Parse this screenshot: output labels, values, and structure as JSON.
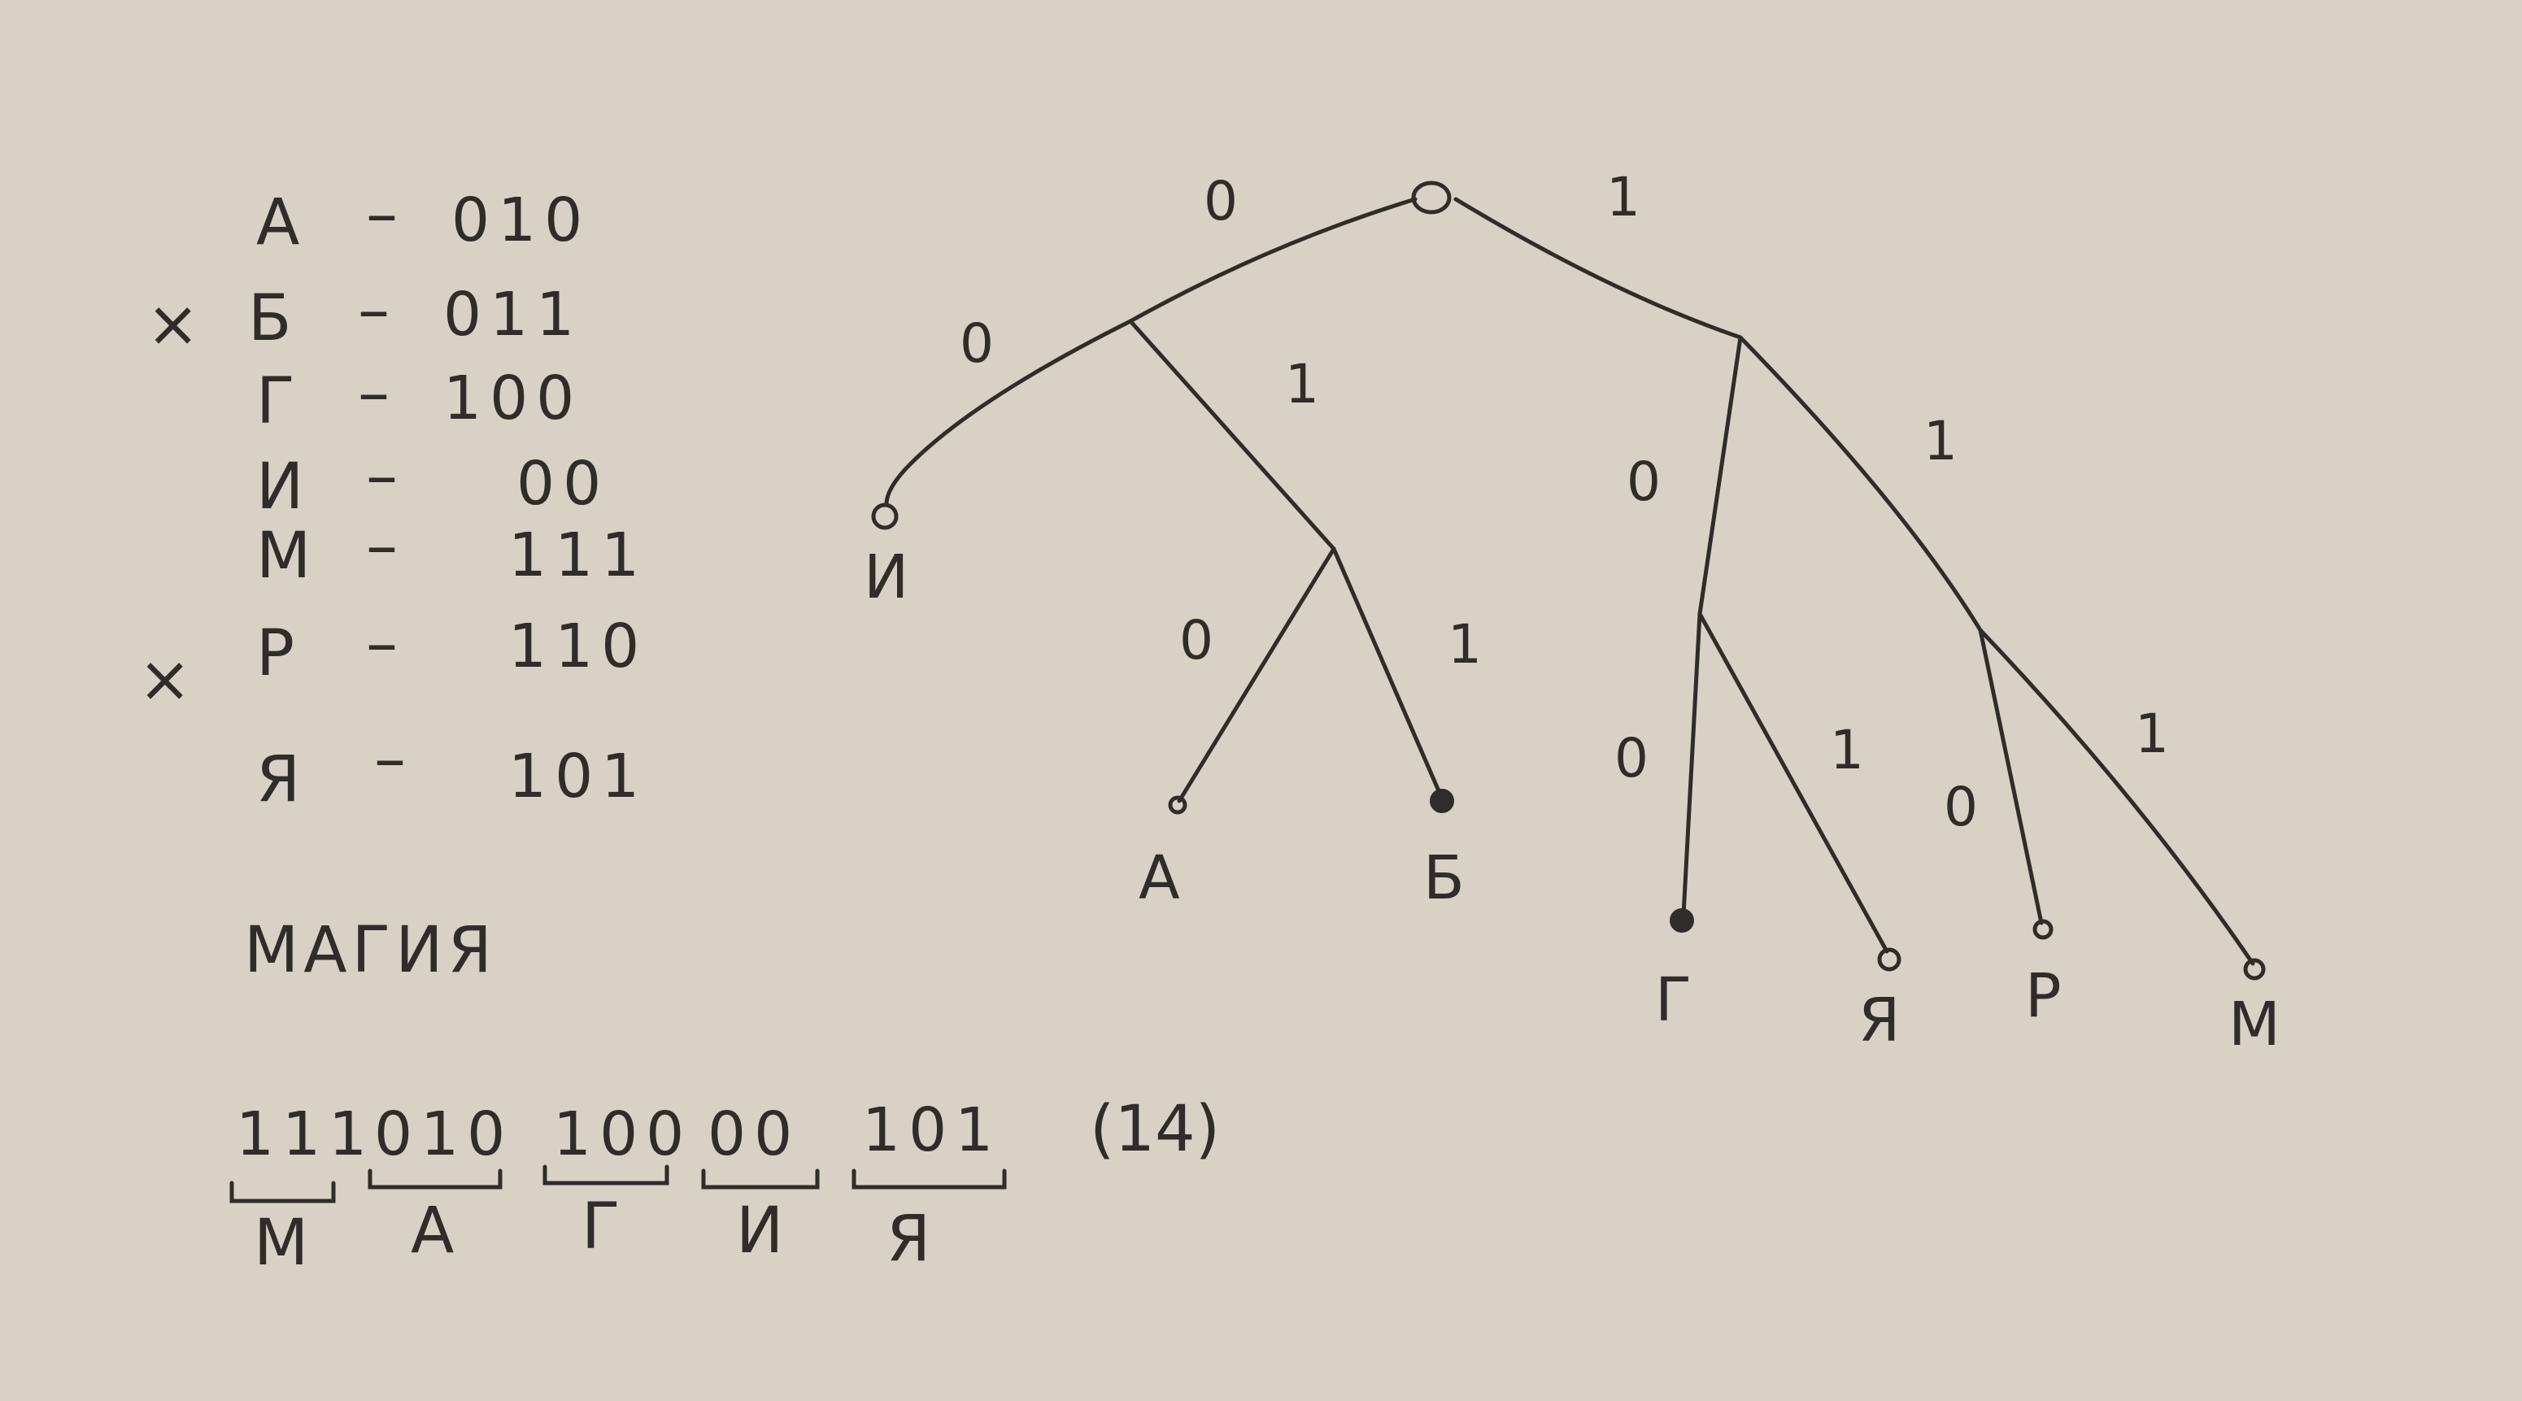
{
  "code_table": [
    {
      "mark": "",
      "letter": "А",
      "code": "010"
    },
    {
      "mark": "×",
      "letter": "Б",
      "code": "011"
    },
    {
      "mark": "",
      "letter": "Г",
      "code": "100"
    },
    {
      "mark": "",
      "letter": "И",
      "code": "00"
    },
    {
      "mark": "",
      "letter": "М",
      "code": "111"
    },
    {
      "mark": "×",
      "letter": "Р",
      "code": "110"
    },
    {
      "mark": "",
      "letter": "Я",
      "code": "101"
    }
  ],
  "word": "МАГИЯ",
  "encoding": [
    {
      "code": "111",
      "letter": "М"
    },
    {
      "code": "010",
      "letter": "А"
    },
    {
      "code": "100",
      "letter": "Г"
    },
    {
      "code": "00",
      "letter": "И"
    },
    {
      "code": "101",
      "letter": "Я"
    }
  ],
  "total_bits": "(14)",
  "tree": {
    "edges": [
      {
        "id": "root-0",
        "bit": "0"
      },
      {
        "id": "root-1",
        "bit": "1"
      },
      {
        "id": "n0-0",
        "bit": "0"
      },
      {
        "id": "n0-1",
        "bit": "1"
      },
      {
        "id": "n01-0",
        "bit": "0"
      },
      {
        "id": "n01-1",
        "bit": "1"
      },
      {
        "id": "n1-0",
        "bit": "0"
      },
      {
        "id": "n1-1",
        "bit": "1"
      },
      {
        "id": "n10-0",
        "bit": "0"
      },
      {
        "id": "n10-1",
        "bit": "1"
      },
      {
        "id": "n11-0",
        "bit": "0"
      },
      {
        "id": "n11-1",
        "bit": "1"
      }
    ],
    "leaves": [
      {
        "id": "И",
        "label": "И",
        "filled": false
      },
      {
        "id": "А",
        "label": "А",
        "filled": false
      },
      {
        "id": "Б",
        "label": "Б",
        "filled": true
      },
      {
        "id": "Г",
        "label": "Г",
        "filled": true
      },
      {
        "id": "Я",
        "label": "Я",
        "filled": false
      },
      {
        "id": "Р",
        "label": "Р",
        "filled": false
      },
      {
        "id": "М",
        "label": "М",
        "filled": false
      }
    ]
  }
}
